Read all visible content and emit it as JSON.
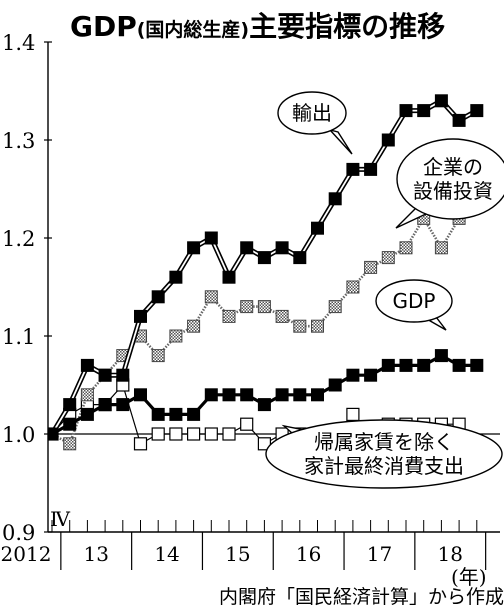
{
  "chart_data": {
    "type": "line",
    "title_prefix": "GDP",
    "title_paren": "(国内総生産)",
    "title_suffix": "主要指標の推移",
    "xlabel_unit": "(年)",
    "quarter_label": "Ⅳ",
    "source": "内閣府「国民経済計算」から作成",
    "ylim": [
      0.9,
      1.4
    ],
    "y_ticks": [
      0.9,
      1.0,
      1.1,
      1.2,
      1.3,
      1.4
    ],
    "y_tick_labels": [
      "0.9",
      "1.0",
      "1.1",
      "1.2",
      "1.3",
      "1.4"
    ],
    "year_labels": [
      "2012",
      "13",
      "14",
      "15",
      "16",
      "17",
      "18"
    ],
    "x_quarters": [
      "2012Q4",
      "2013Q1",
      "2013Q2",
      "2013Q3",
      "2013Q4",
      "2014Q1",
      "2014Q2",
      "2014Q3",
      "2014Q4",
      "2015Q1",
      "2015Q2",
      "2015Q3",
      "2015Q4",
      "2016Q1",
      "2016Q2",
      "2016Q3",
      "2016Q4",
      "2017Q1",
      "2017Q2",
      "2017Q3",
      "2017Q4",
      "2018Q1",
      "2018Q2",
      "2018Q3",
      "2018Q4"
    ],
    "baseline": 1.0,
    "series": [
      {
        "name": "輸出",
        "marker": "filled",
        "line": "double",
        "values": [
          1.0,
          1.03,
          1.07,
          1.06,
          1.06,
          1.12,
          1.14,
          1.16,
          1.19,
          1.2,
          1.16,
          1.19,
          1.18,
          1.19,
          1.18,
          1.21,
          1.24,
          1.27,
          1.27,
          1.3,
          1.33,
          1.33,
          1.34,
          1.32,
          1.33
        ]
      },
      {
        "name": "企業の設備投資",
        "marker": "hatched",
        "line": "dotted",
        "values": [
          1.0,
          0.99,
          1.04,
          1.06,
          1.08,
          1.1,
          1.08,
          1.1,
          1.11,
          1.14,
          1.12,
          1.13,
          1.13,
          1.12,
          1.11,
          1.11,
          1.13,
          1.15,
          1.17,
          1.18,
          1.19,
          1.22,
          1.19,
          1.22,
          null
        ]
      },
      {
        "name": "GDP",
        "marker": "filled",
        "line": "solid",
        "values": [
          1.0,
          1.01,
          1.02,
          1.03,
          1.03,
          1.04,
          1.02,
          1.02,
          1.02,
          1.04,
          1.04,
          1.04,
          1.03,
          1.04,
          1.04,
          1.04,
          1.05,
          1.06,
          1.06,
          1.07,
          1.07,
          1.07,
          1.08,
          1.07,
          1.07
        ]
      },
      {
        "name": "帰属家賃を除く家計最終消費支出",
        "marker": "open",
        "line": "thin",
        "values": [
          1.0,
          1.02,
          1.03,
          1.03,
          1.05,
          0.99,
          1.0,
          1.0,
          1.0,
          1.0,
          1.0,
          1.01,
          0.99,
          1.0,
          1.0,
          1.0,
          1.0,
          1.02,
          1.0,
          1.01,
          1.01,
          1.01,
          1.01,
          1.01,
          null
        ]
      }
    ],
    "callouts": [
      {
        "series": 0,
        "lines": [
          "輸出"
        ]
      },
      {
        "series": 1,
        "lines": [
          "企業の",
          "設備投資"
        ]
      },
      {
        "series": 2,
        "lines": [
          "GDP"
        ]
      },
      {
        "series": 3,
        "lines": [
          "帰属家賃を除く",
          "家計最終消費支出"
        ]
      }
    ]
  }
}
